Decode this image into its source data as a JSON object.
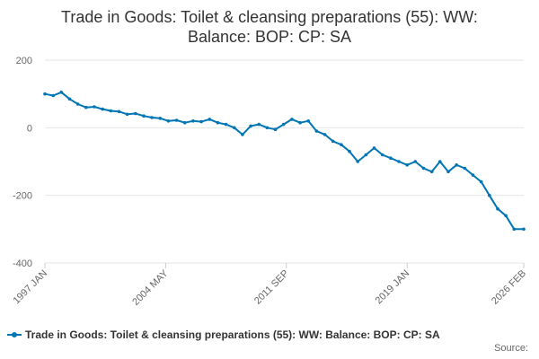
{
  "chart_data": {
    "type": "line",
    "title_lines": [
      "Trade in Goods: Toilet & cleansing preparations (55): WW:",
      "Balance: BOP: CP: SA"
    ],
    "xlabel": "",
    "ylabel": "",
    "ylim": [
      -400,
      200
    ],
    "yticks": [
      200,
      0,
      -200,
      -400
    ],
    "xlim": [
      "1997 JAN",
      "2026 FEB"
    ],
    "xticks": [
      "1997 JAN",
      "2004 MAY",
      "2011 SEP",
      "2019 JAN",
      "2026 FEB"
    ],
    "grid": "horizontal",
    "legend_position": "bottom",
    "series": [
      {
        "name": "Trade in Goods: Toilet & cleansing preparations (55): WW: Balance: BOP: CP: SA",
        "color": "#0075b4",
        "x": [
          "1997 JAN",
          "1997 JUL",
          "1998 JAN",
          "1998 JUL",
          "1999 JAN",
          "1999 JUL",
          "2000 JAN",
          "2000 JUL",
          "2001 JAN",
          "2001 JUL",
          "2002 JAN",
          "2002 JUL",
          "2003 JAN",
          "2003 JUL",
          "2004 JAN",
          "2004 JUL",
          "2005 JAN",
          "2005 JUL",
          "2006 JAN",
          "2006 JUL",
          "2007 JAN",
          "2007 JUL",
          "2008 JAN",
          "2008 JUL",
          "2009 JAN",
          "2009 JUL",
          "2010 JAN",
          "2010 JUL",
          "2011 JAN",
          "2011 JUL",
          "2012 JAN",
          "2012 JUL",
          "2013 JAN",
          "2013 JUL",
          "2014 JAN",
          "2014 JUL",
          "2015 JAN",
          "2015 JUL",
          "2016 JAN",
          "2016 JUL",
          "2017 JAN",
          "2017 JUL",
          "2018 JAN",
          "2018 JUL",
          "2019 JAN",
          "2019 JUL",
          "2020 JAN",
          "2020 JUL",
          "2021 JAN",
          "2021 JUL",
          "2022 JAN",
          "2022 JUL",
          "2023 JAN",
          "2023 JUL",
          "2024 JAN",
          "2024 JUL",
          "2025 JAN",
          "2025 JUL",
          "2026 FEB"
        ],
        "values": [
          100,
          95,
          105,
          85,
          70,
          60,
          62,
          55,
          50,
          48,
          40,
          42,
          35,
          30,
          28,
          20,
          22,
          15,
          20,
          18,
          25,
          15,
          10,
          0,
          -20,
          5,
          10,
          0,
          -5,
          10,
          25,
          15,
          20,
          -10,
          -20,
          -40,
          -50,
          -70,
          -100,
          -80,
          -60,
          -80,
          -90,
          -100,
          -110,
          -100,
          -120,
          -130,
          -100,
          -130,
          -110,
          -120,
          -140,
          -160,
          -200,
          -240,
          -260,
          -300,
          -300
        ]
      }
    ]
  },
  "source_label": "Source:"
}
